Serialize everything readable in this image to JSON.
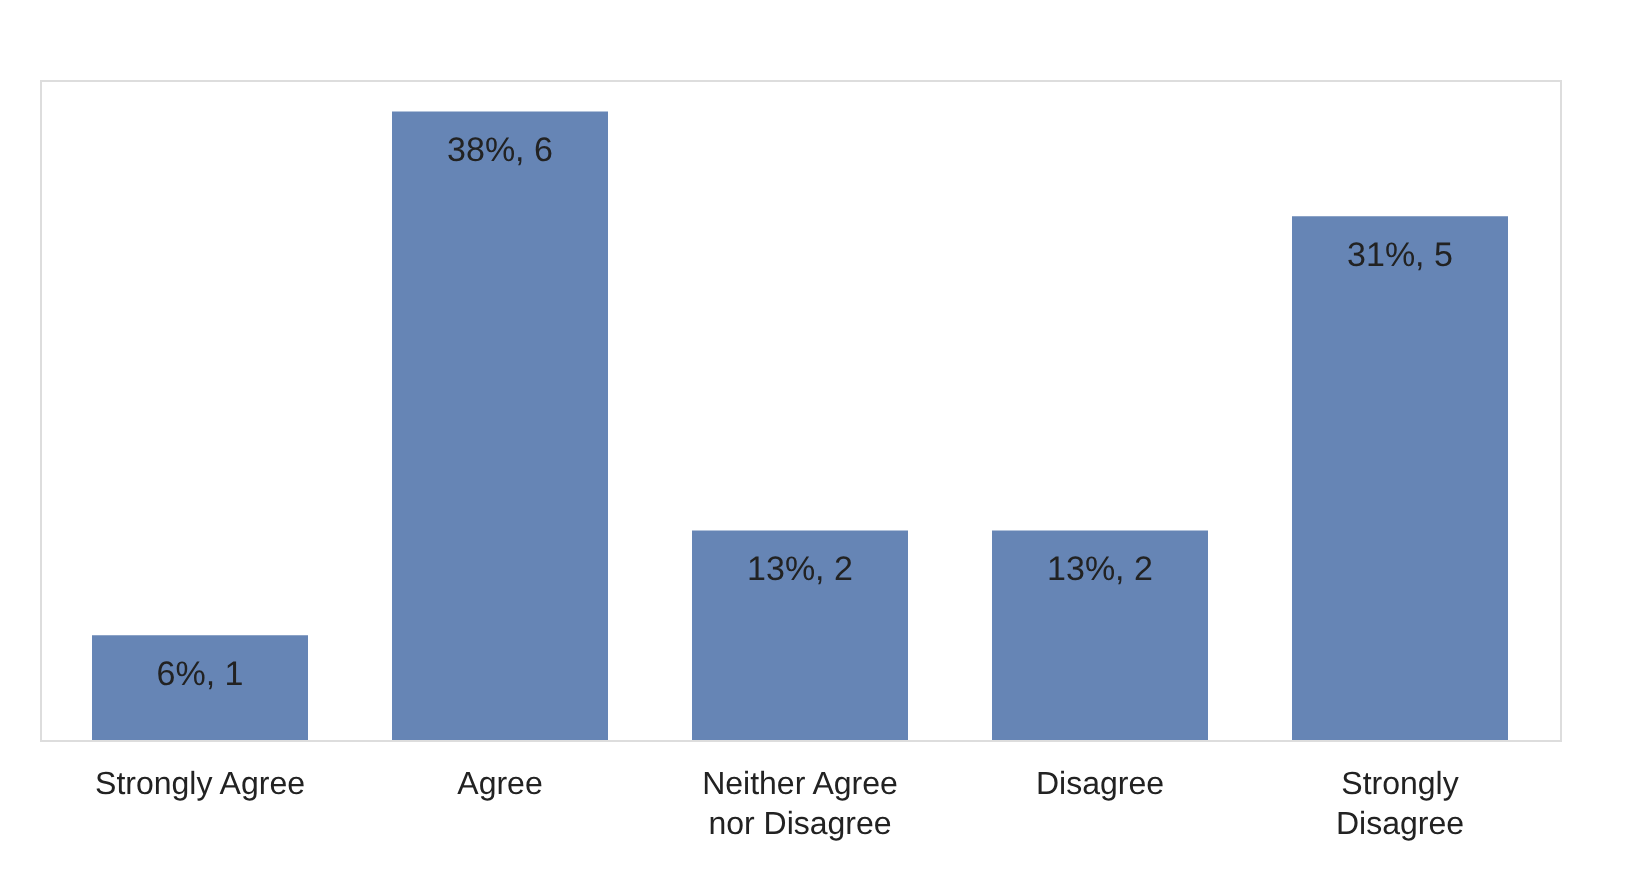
{
  "chart_data": {
    "type": "bar",
    "categories": [
      "Strongly Agree",
      "Agree",
      "Neither Agree nor Disagree",
      "Disagree",
      "Strongly Disagree"
    ],
    "values": [
      1,
      6,
      2,
      2,
      5
    ],
    "value_labels": [
      "6%, 1",
      "38%, 6",
      "13%, 2",
      "13%, 2",
      "31%, 5"
    ],
    "color": "#6685b5"
  }
}
